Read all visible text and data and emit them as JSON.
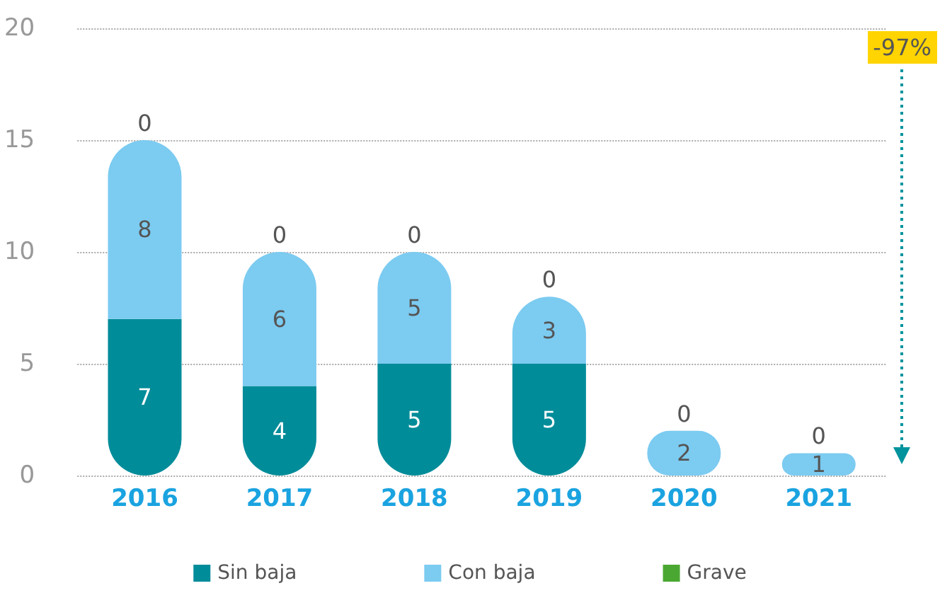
{
  "chart_data": {
    "type": "bar",
    "stacked": true,
    "categories": [
      "2016",
      "2017",
      "2018",
      "2019",
      "2020",
      "2021"
    ],
    "series": [
      {
        "name": "Sin baja",
        "color": "#008c99",
        "values": [
          7,
          4,
          5,
          5,
          0,
          0
        ],
        "value_labels": [
          "7",
          "4",
          "5",
          "5",
          null,
          null
        ]
      },
      {
        "name": "Con baja",
        "color": "#7ccbf1",
        "values": [
          8,
          6,
          5,
          3,
          2,
          1
        ],
        "value_labels": [
          "8",
          "6",
          "5",
          "3",
          "2",
          "1"
        ]
      },
      {
        "name": "Grave",
        "color": "#4aa832",
        "values": [
          0,
          0,
          0,
          0,
          0,
          0
        ],
        "value_labels": [
          "0",
          "0",
          "0",
          "0",
          "0",
          "0"
        ]
      }
    ],
    "ylim": [
      0,
      20
    ],
    "yticks": [
      0,
      5,
      10,
      15,
      20
    ],
    "grid": "y",
    "legend": "bottom",
    "annotations": [
      "-97%"
    ]
  }
}
